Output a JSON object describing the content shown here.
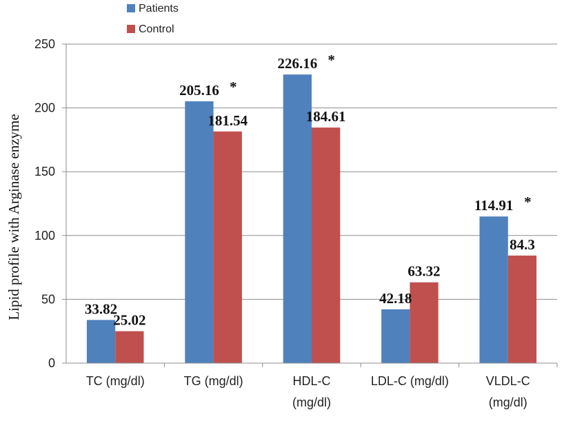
{
  "chart_data": {
    "type": "bar",
    "title": "",
    "xlabel": "",
    "ylabel": "Lipid profile with Arginase enzyme",
    "ylim": [
      0,
      250
    ],
    "yticks": [
      0,
      50,
      100,
      150,
      200,
      250
    ],
    "grid": true,
    "legend_position": "top-left",
    "categories": [
      [
        "TC (mg/dl)"
      ],
      [
        "TG (mg/dl)"
      ],
      [
        "HDL-C",
        "(mg/dl)"
      ],
      [
        "LDL-C (mg/dl)"
      ],
      [
        "VLDL-C",
        "(mg/dl)"
      ]
    ],
    "series": [
      {
        "name": "Patients",
        "color": "#4F81BD",
        "values": [
          33.82,
          205.16,
          226.16,
          42.18,
          114.91
        ],
        "labels": [
          "33.82",
          "205.16",
          "226.16",
          "42.18",
          "114.91"
        ],
        "marks": [
          "",
          "*",
          "*",
          "",
          "*"
        ]
      },
      {
        "name": "Control",
        "color": "#C0504D",
        "values": [
          25.02,
          181.54,
          184.61,
          63.32,
          84.3
        ],
        "labels": [
          "25.02",
          "181.54",
          "184.61",
          "63.32",
          "84.3"
        ],
        "marks": [
          "",
          "",
          "",
          "",
          ""
        ]
      }
    ]
  }
}
